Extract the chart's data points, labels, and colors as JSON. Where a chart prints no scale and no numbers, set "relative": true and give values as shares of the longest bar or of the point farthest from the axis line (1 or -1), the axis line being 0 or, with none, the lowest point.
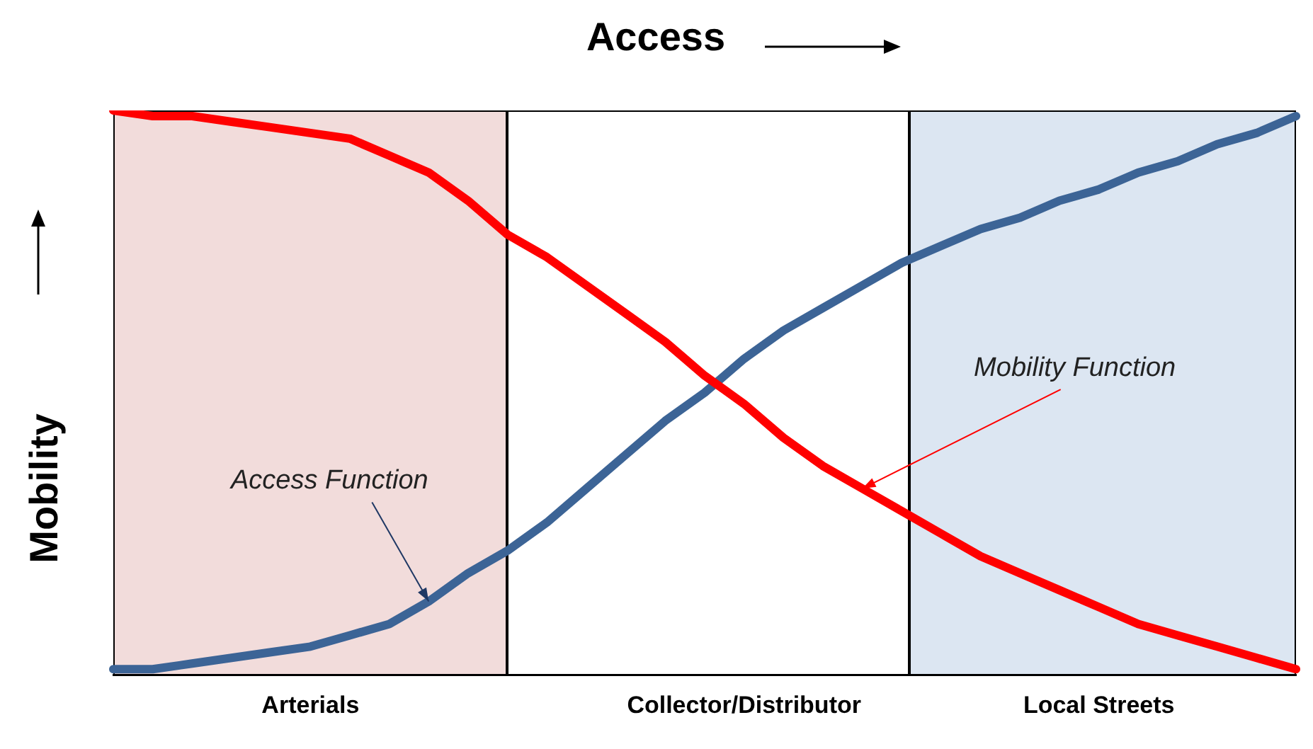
{
  "chart_data": {
    "type": "line",
    "title": "Access",
    "ylabel": "Mobility",
    "relative": true,
    "legend": false,
    "marker": "none",
    "categories": [
      null,
      null,
      null,
      null,
      null,
      "Arterials",
      null,
      null,
      null,
      null,
      null,
      null,
      null,
      null,
      null,
      null,
      "Collector/Distributor",
      null,
      null,
      null,
      null,
      null,
      null,
      null,
      null,
      "Local Streets",
      null,
      null,
      null,
      null,
      null
    ],
    "series": [
      {
        "color": "#ff0000",
        "values": [
          1,
          0.99,
          0.99,
          0.98,
          0.97,
          0.96,
          0.95,
          0.92,
          0.89,
          0.84,
          0.78,
          0.74,
          0.69,
          0.64,
          0.59,
          0.53,
          0.48,
          0.42,
          0.37,
          0.33,
          0.29,
          0.25,
          0.21,
          0.18,
          0.15,
          0.12,
          0.09,
          0.07,
          0.05,
          0.03,
          0.01
        ]
      },
      {
        "color": "#3c6496",
        "values": [
          0.01,
          0.01,
          0.02,
          0.03,
          0.04,
          0.05,
          0.07,
          0.09,
          0.13,
          0.18,
          0.22,
          0.27,
          0.33,
          0.39,
          0.45,
          0.5,
          0.56,
          0.61,
          0.65,
          0.69,
          0.73,
          0.76,
          0.79,
          0.81,
          0.84,
          0.86,
          0.89,
          0.91,
          0.94,
          0.96,
          0.99
        ]
      }
    ],
    "annotations": [
      "Access Function",
      "Mobility Function"
    ]
  }
}
